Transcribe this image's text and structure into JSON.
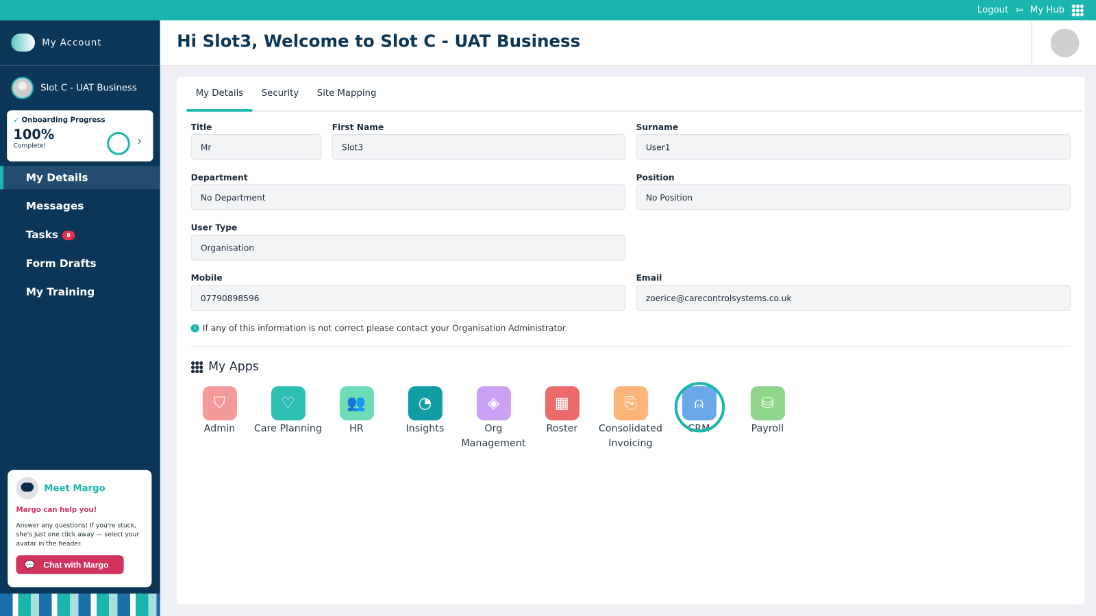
{
  "topbar": {
    "logout": "Logout",
    "hub": "My Hub"
  },
  "sidebar": {
    "brand": "My Account",
    "org": "Slot C - UAT Business",
    "progress": {
      "title": "Onboarding Progress",
      "percent": "100%",
      "status": "Complete!",
      "value": 100
    },
    "items": [
      {
        "label": "My Details"
      },
      {
        "label": "Messages"
      },
      {
        "label": "Tasks",
        "badge": "8"
      },
      {
        "label": "Form Drafts"
      },
      {
        "label": "My Training"
      }
    ],
    "margo": {
      "title": "Meet Margo",
      "subtitle": "Margo can help you!",
      "body": "Answer any questions! If you're stuck, she's just one click away — select your avatar in the header.",
      "button": "Chat with Margo"
    }
  },
  "header": {
    "title": "Hi Slot3, Welcome to Slot C - UAT Business"
  },
  "tabs": [
    "My Details",
    "Security",
    "Site Mapping"
  ],
  "form": {
    "title": {
      "label": "Title",
      "value": "Mr"
    },
    "first": {
      "label": "First Name",
      "value": "Slot3"
    },
    "surname": {
      "label": "Surname",
      "value": "User1"
    },
    "department": {
      "label": "Department",
      "value": "No Department"
    },
    "position": {
      "label": "Position",
      "value": "No Position"
    },
    "usertype": {
      "label": "User Type",
      "value": "Organisation"
    },
    "mobile": {
      "label": "Mobile",
      "value": "07790898596"
    },
    "email": {
      "label": "Email",
      "value": "zoerice@carecontrolsystems.co.uk"
    }
  },
  "info": "If any of this information is not correct please contact your Organisation Administrator.",
  "apps": {
    "heading": "My Apps",
    "items": [
      {
        "label": "Admin",
        "color": "#f59a9a",
        "icon": "shield-icon"
      },
      {
        "label": "Care Planning",
        "color": "#2cc0b3",
        "icon": "heart-icon"
      },
      {
        "label": "HR",
        "color": "#6fdcb8",
        "icon": "people-icon"
      },
      {
        "label": "Insights",
        "color": "#129ca3",
        "icon": "pie-chart-icon"
      },
      {
        "label": "Org Management",
        "color": "#c9a2f5",
        "icon": "layers-icon"
      },
      {
        "label": "Roster",
        "color": "#ec6a6a",
        "icon": "calendar-icon"
      },
      {
        "label": "Consolidated Invoicing",
        "color": "#fbb578",
        "icon": "invoice-icon"
      },
      {
        "label": "CRM",
        "color": "#6aa8e8",
        "icon": "user-plus-icon"
      },
      {
        "label": "Payroll",
        "color": "#8fd68a",
        "icon": "coins-icon"
      }
    ]
  }
}
